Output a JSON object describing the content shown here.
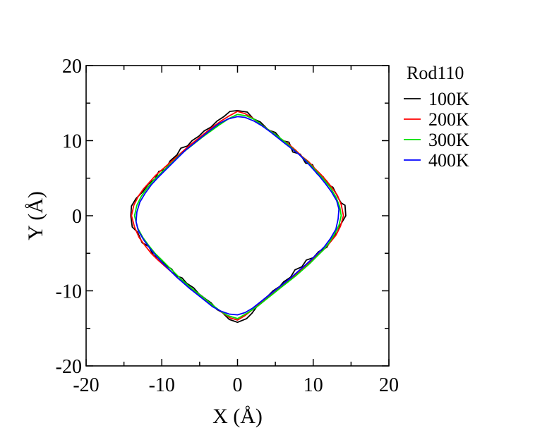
{
  "chart_data": {
    "type": "line",
    "title": "",
    "xlabel": "X (Å)",
    "ylabel": "Y (Å)",
    "xlim": [
      -20,
      20
    ],
    "ylim": [
      -20,
      20
    ],
    "x_ticks": [
      -20,
      -10,
      0,
      10,
      20
    ],
    "y_ticks": [
      -20,
      -10,
      0,
      10,
      20
    ],
    "x_tick_labels": [
      "-20",
      "-10",
      "0",
      "10",
      "20"
    ],
    "y_tick_labels": [
      "-20",
      "-10",
      "0",
      "10",
      "20"
    ],
    "minor_tick_step": 5,
    "grid": false,
    "legend": {
      "title": "Rod110",
      "placement": "right, outside plot, top"
    },
    "series": [
      {
        "name": "100K",
        "color": "#000000",
        "points": [
          [
            0,
            14.0
          ],
          [
            1.3,
            13.8
          ],
          [
            2.1,
            12.9
          ],
          [
            3.0,
            12.5
          ],
          [
            4.1,
            11.4
          ],
          [
            5.0,
            11.1
          ],
          [
            5.9,
            10.0
          ],
          [
            6.8,
            9.8
          ],
          [
            7.3,
            8.5
          ],
          [
            8.3,
            8.2
          ],
          [
            9.0,
            7.0
          ],
          [
            9.9,
            6.8
          ],
          [
            10.5,
            5.6
          ],
          [
            11.3,
            5.2
          ],
          [
            12.0,
            4.1
          ],
          [
            12.6,
            3.8
          ],
          [
            13.4,
            2.2
          ],
          [
            13.7,
            1.7
          ],
          [
            14.2,
            1.4
          ],
          [
            14.3,
            0
          ],
          [
            13.6,
            -1.2
          ],
          [
            13.2,
            -2.2
          ],
          [
            12.4,
            -3.1
          ],
          [
            11.8,
            -4.2
          ],
          [
            10.7,
            -4.8
          ],
          [
            10.0,
            -5.6
          ],
          [
            9.1,
            -5.9
          ],
          [
            8.5,
            -6.8
          ],
          [
            7.6,
            -7.2
          ],
          [
            7.0,
            -8.2
          ],
          [
            6.1,
            -8.8
          ],
          [
            5.6,
            -9.4
          ],
          [
            4.7,
            -10.0
          ],
          [
            4.1,
            -10.6
          ],
          [
            3.3,
            -11.3
          ],
          [
            2.7,
            -11.9
          ],
          [
            1.9,
            -13.0
          ],
          [
            1.2,
            -13.7
          ],
          [
            0,
            -14.2
          ],
          [
            -1.1,
            -13.8
          ],
          [
            -2.0,
            -12.9
          ],
          [
            -2.7,
            -12.5
          ],
          [
            -3.5,
            -11.6
          ],
          [
            -4.2,
            -11.1
          ],
          [
            -5.1,
            -10.4
          ],
          [
            -5.8,
            -9.6
          ],
          [
            -6.7,
            -9.0
          ],
          [
            -7.3,
            -8.3
          ],
          [
            -8.1,
            -8.0
          ],
          [
            -8.7,
            -7.1
          ],
          [
            -9.5,
            -6.6
          ],
          [
            -10.1,
            -5.8
          ],
          [
            -11.1,
            -5.3
          ],
          [
            -11.7,
            -4.1
          ],
          [
            -12.6,
            -3.6
          ],
          [
            -13.2,
            -2.2
          ],
          [
            -13.9,
            -1.5
          ],
          [
            -14.1,
            0
          ],
          [
            -14.0,
            1.3
          ],
          [
            -13.4,
            2.3
          ],
          [
            -12.5,
            3.2
          ],
          [
            -11.8,
            4.2
          ],
          [
            -10.9,
            4.9
          ],
          [
            -10.4,
            5.9
          ],
          [
            -9.5,
            6.2
          ],
          [
            -8.9,
            7.3
          ],
          [
            -8.0,
            8.1
          ],
          [
            -7.5,
            9.0
          ],
          [
            -6.6,
            9.3
          ],
          [
            -6.0,
            10.0
          ],
          [
            -5.1,
            10.6
          ],
          [
            -4.4,
            11.3
          ],
          [
            -3.5,
            11.8
          ],
          [
            -2.7,
            12.6
          ],
          [
            -1.8,
            13.2
          ],
          [
            -1.0,
            13.9
          ],
          [
            0,
            14.0
          ]
        ]
      },
      {
        "name": "200K",
        "color": "#ff0000",
        "points": [
          [
            0,
            13.9
          ],
          [
            1.0,
            13.6
          ],
          [
            2.0,
            13.0
          ],
          [
            2.9,
            12.3
          ],
          [
            3.9,
            11.6
          ],
          [
            4.9,
            10.9
          ],
          [
            5.8,
            10.2
          ],
          [
            6.8,
            9.5
          ],
          [
            7.7,
            8.7
          ],
          [
            8.5,
            7.9
          ],
          [
            9.4,
            7.2
          ],
          [
            10.2,
            6.3
          ],
          [
            11.0,
            5.5
          ],
          [
            11.8,
            4.6
          ],
          [
            12.5,
            3.7
          ],
          [
            13.2,
            2.7
          ],
          [
            13.7,
            1.5
          ],
          [
            14.0,
            0
          ],
          [
            13.6,
            -1.4
          ],
          [
            13.0,
            -2.6
          ],
          [
            12.2,
            -3.6
          ],
          [
            11.4,
            -4.5
          ],
          [
            10.5,
            -5.3
          ],
          [
            9.6,
            -6.1
          ],
          [
            8.7,
            -6.9
          ],
          [
            7.8,
            -7.7
          ],
          [
            6.9,
            -8.5
          ],
          [
            6.0,
            -9.3
          ],
          [
            5.0,
            -10.1
          ],
          [
            4.0,
            -10.9
          ],
          [
            3.0,
            -11.7
          ],
          [
            2.0,
            -12.5
          ],
          [
            1.0,
            -13.3
          ],
          [
            0,
            -13.9
          ],
          [
            -1.0,
            -13.6
          ],
          [
            -2.0,
            -12.9
          ],
          [
            -3.0,
            -12.2
          ],
          [
            -4.0,
            -11.4
          ],
          [
            -5.0,
            -10.6
          ],
          [
            -6.0,
            -9.8
          ],
          [
            -7.0,
            -9.0
          ],
          [
            -7.9,
            -8.3
          ],
          [
            -8.7,
            -7.5
          ],
          [
            -9.6,
            -6.7
          ],
          [
            -10.5,
            -5.9
          ],
          [
            -11.4,
            -5.0
          ],
          [
            -12.2,
            -4.0
          ],
          [
            -13.0,
            -2.9
          ],
          [
            -13.6,
            -1.5
          ],
          [
            -14.0,
            0
          ],
          [
            -13.7,
            1.4
          ],
          [
            -13.1,
            2.6
          ],
          [
            -12.4,
            3.6
          ],
          [
            -11.6,
            4.5
          ],
          [
            -10.8,
            5.4
          ],
          [
            -9.9,
            6.2
          ],
          [
            -9.0,
            7.0
          ],
          [
            -8.1,
            7.8
          ],
          [
            -7.2,
            8.6
          ],
          [
            -6.3,
            9.4
          ],
          [
            -5.3,
            10.2
          ],
          [
            -4.3,
            11.0
          ],
          [
            -3.3,
            11.8
          ],
          [
            -2.2,
            12.6
          ],
          [
            -1.1,
            13.3
          ],
          [
            0,
            13.9
          ]
        ]
      },
      {
        "name": "300K",
        "color": "#00e000",
        "points": [
          [
            0,
            13.5
          ],
          [
            1.2,
            13.3
          ],
          [
            2.3,
            12.8
          ],
          [
            3.3,
            12.0
          ],
          [
            4.3,
            11.3
          ],
          [
            5.3,
            10.6
          ],
          [
            6.3,
            9.8
          ],
          [
            7.2,
            9.0
          ],
          [
            8.1,
            8.2
          ],
          [
            9.0,
            7.4
          ],
          [
            9.9,
            6.5
          ],
          [
            10.7,
            5.6
          ],
          [
            11.5,
            4.7
          ],
          [
            12.3,
            3.7
          ],
          [
            13.0,
            2.5
          ],
          [
            13.5,
            1.2
          ],
          [
            13.7,
            0
          ],
          [
            13.4,
            -1.3
          ],
          [
            12.8,
            -2.5
          ],
          [
            12.1,
            -3.6
          ],
          [
            11.3,
            -4.6
          ],
          [
            10.4,
            -5.5
          ],
          [
            9.5,
            -6.4
          ],
          [
            8.6,
            -7.2
          ],
          [
            7.7,
            -8.0
          ],
          [
            6.7,
            -8.8
          ],
          [
            5.7,
            -9.6
          ],
          [
            4.7,
            -10.4
          ],
          [
            3.7,
            -11.2
          ],
          [
            2.6,
            -12.1
          ],
          [
            1.4,
            -12.9
          ],
          [
            0,
            -13.7
          ],
          [
            -1.3,
            -13.3
          ],
          [
            -2.4,
            -12.6
          ],
          [
            -3.4,
            -11.8
          ],
          [
            -4.4,
            -11.0
          ],
          [
            -5.4,
            -10.2
          ],
          [
            -6.4,
            -9.4
          ],
          [
            -7.3,
            -8.6
          ],
          [
            -8.2,
            -7.7
          ],
          [
            -9.1,
            -6.8
          ],
          [
            -10.0,
            -5.9
          ],
          [
            -10.9,
            -5.0
          ],
          [
            -11.7,
            -4.0
          ],
          [
            -12.5,
            -2.9
          ],
          [
            -13.2,
            -1.6
          ],
          [
            -13.6,
            0
          ],
          [
            -13.3,
            1.4
          ],
          [
            -12.7,
            2.6
          ],
          [
            -12.0,
            3.6
          ],
          [
            -11.2,
            4.6
          ],
          [
            -10.3,
            5.5
          ],
          [
            -9.4,
            6.4
          ],
          [
            -8.5,
            7.2
          ],
          [
            -7.6,
            8.1
          ],
          [
            -6.6,
            8.9
          ],
          [
            -5.6,
            9.7
          ],
          [
            -4.6,
            10.5
          ],
          [
            -3.5,
            11.3
          ],
          [
            -2.4,
            12.1
          ],
          [
            -1.2,
            12.9
          ],
          [
            0,
            13.5
          ]
        ]
      },
      {
        "name": "400K",
        "color": "#0000ff",
        "points": [
          [
            0,
            13.2
          ],
          [
            1.0,
            13.1
          ],
          [
            2.2,
            12.6
          ],
          [
            3.2,
            12.0
          ],
          [
            4.3,
            11.2
          ],
          [
            5.3,
            10.4
          ],
          [
            6.3,
            9.6
          ],
          [
            7.2,
            8.9
          ],
          [
            8.2,
            8.1
          ],
          [
            9.1,
            7.2
          ],
          [
            9.9,
            6.3
          ],
          [
            10.8,
            5.3
          ],
          [
            11.6,
            4.3
          ],
          [
            12.4,
            3.2
          ],
          [
            13.1,
            2.0
          ],
          [
            13.4,
            0.9
          ],
          [
            13.3,
            -0.4
          ],
          [
            13.0,
            -1.8
          ],
          [
            12.3,
            -3.0
          ],
          [
            11.5,
            -4.1
          ],
          [
            10.6,
            -5.0
          ],
          [
            9.7,
            -5.9
          ],
          [
            8.8,
            -6.7
          ],
          [
            7.9,
            -7.5
          ],
          [
            7.0,
            -8.3
          ],
          [
            6.0,
            -9.1
          ],
          [
            5.0,
            -9.9
          ],
          [
            4.0,
            -10.7
          ],
          [
            3.0,
            -11.5
          ],
          [
            2.0,
            -12.3
          ],
          [
            1.0,
            -12.9
          ],
          [
            0,
            -13.2
          ],
          [
            -1.1,
            -13.1
          ],
          [
            -2.2,
            -12.7
          ],
          [
            -3.3,
            -12.1
          ],
          [
            -4.3,
            -11.3
          ],
          [
            -5.3,
            -10.5
          ],
          [
            -6.3,
            -9.7
          ],
          [
            -7.2,
            -8.9
          ],
          [
            -8.1,
            -8.1
          ],
          [
            -9.0,
            -7.2
          ],
          [
            -9.9,
            -6.3
          ],
          [
            -10.8,
            -5.3
          ],
          [
            -11.6,
            -4.3
          ],
          [
            -12.4,
            -3.2
          ],
          [
            -13.1,
            -2.0
          ],
          [
            -13.4,
            -0.8
          ],
          [
            -13.3,
            0.5
          ],
          [
            -12.9,
            1.8
          ],
          [
            -12.2,
            3.0
          ],
          [
            -11.4,
            4.1
          ],
          [
            -10.5,
            5.1
          ],
          [
            -9.6,
            6.0
          ],
          [
            -8.7,
            6.9
          ],
          [
            -7.8,
            7.8
          ],
          [
            -6.9,
            8.7
          ],
          [
            -5.8,
            9.6
          ],
          [
            -4.7,
            10.5
          ],
          [
            -3.6,
            11.4
          ],
          [
            -2.4,
            12.3
          ],
          [
            -1.2,
            12.9
          ],
          [
            0,
            13.2
          ]
        ]
      }
    ]
  }
}
